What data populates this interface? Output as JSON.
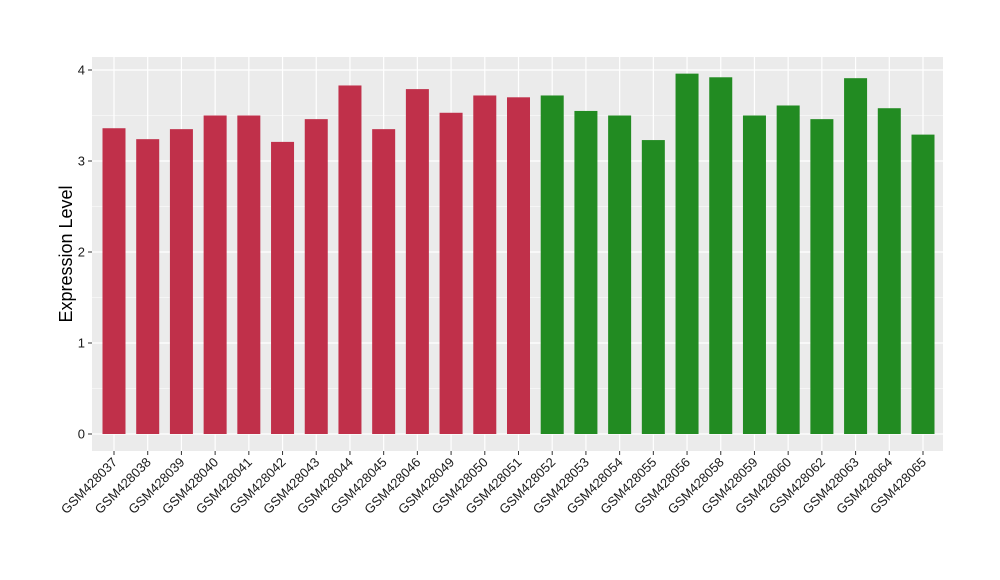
{
  "chart_data": {
    "type": "bar",
    "title": "",
    "xlabel": "",
    "ylabel": "Expression Level",
    "ylim": [
      0,
      4.0
    ],
    "yticks": [
      0,
      1,
      2,
      3,
      4
    ],
    "grid": true,
    "legend": "none",
    "panel_background": "#ebebeb",
    "grid_color": "#ffffff",
    "categories": [
      "GSM428037",
      "GSM428038",
      "GSM428039",
      "GSM428040",
      "GSM428041",
      "GSM428042",
      "GSM428043",
      "GSM428044",
      "GSM428045",
      "GSM428046",
      "GSM428049",
      "GSM428050",
      "GSM428051",
      "GSM428052",
      "GSM428053",
      "GSM428054",
      "GSM428055",
      "GSM428056",
      "GSM428058",
      "GSM428059",
      "GSM428060",
      "GSM428062",
      "GSM428063",
      "GSM428064",
      "GSM428065"
    ],
    "values": [
      3.36,
      3.24,
      3.35,
      3.5,
      3.5,
      3.21,
      3.46,
      3.83,
      3.35,
      3.79,
      3.53,
      3.72,
      3.7,
      3.72,
      3.55,
      3.5,
      3.23,
      3.96,
      3.92,
      3.5,
      3.61,
      3.46,
      3.91,
      3.58,
      3.29
    ],
    "bar_colors": [
      "#c0304a",
      "#c0304a",
      "#c0304a",
      "#c0304a",
      "#c0304a",
      "#c0304a",
      "#c0304a",
      "#c0304a",
      "#c0304a",
      "#c0304a",
      "#c0304a",
      "#c0304a",
      "#c0304a",
      "#228b22",
      "#228b22",
      "#228b22",
      "#228b22",
      "#228b22",
      "#228b22",
      "#228b22",
      "#228b22",
      "#228b22",
      "#228b22",
      "#228b22",
      "#228b22"
    ]
  }
}
